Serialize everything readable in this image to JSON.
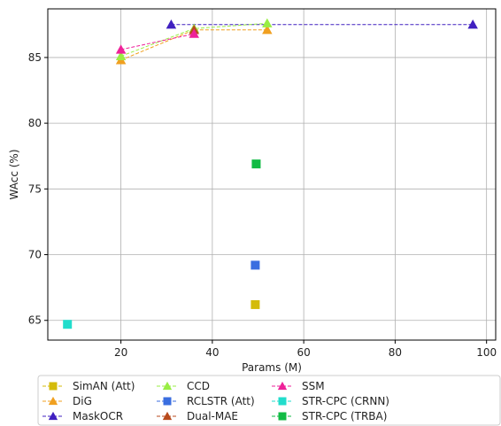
{
  "chart_data": {
    "type": "scatter",
    "xlabel": "Params (M)",
    "ylabel": "WAcc (%)",
    "xlim": [
      4,
      102
    ],
    "ylim": [
      63.5,
      88.7
    ],
    "xticks": [
      20,
      40,
      60,
      80,
      100
    ],
    "yticks": [
      65,
      70,
      75,
      80,
      85
    ],
    "grid": true,
    "legend_position": "bottom",
    "series": [
      {
        "name": "SimAN (Att)",
        "color": "#d4bb0a",
        "marker": "square",
        "line": false,
        "points": [
          [
            49.4,
            66.2
          ]
        ]
      },
      {
        "name": "DiG",
        "color": "#f0a020",
        "marker": "triangle",
        "line": true,
        "points": [
          [
            20,
            84.8
          ],
          [
            36,
            87.1
          ],
          [
            52,
            87.1
          ]
        ]
      },
      {
        "name": "MaskOCR",
        "color": "#4020c0",
        "marker": "triangle",
        "line": true,
        "points": [
          [
            31,
            87.5
          ],
          [
            97,
            87.5
          ]
        ]
      },
      {
        "name": "CCD",
        "color": "#99ee44",
        "marker": "triangle",
        "line": true,
        "points": [
          [
            20,
            85.1
          ],
          [
            36,
            87.2
          ],
          [
            52,
            87.6
          ]
        ]
      },
      {
        "name": "RCLSTR (Att)",
        "color": "#3a6ee0",
        "marker": "square",
        "line": false,
        "points": [
          [
            49.4,
            69.2
          ]
        ]
      },
      {
        "name": "Dual-MAE",
        "color": "#b84a1c",
        "marker": "triangle",
        "line": true,
        "points": [
          [
            36,
            87.1
          ]
        ]
      },
      {
        "name": "SSM",
        "color": "#ee2299",
        "marker": "triangle",
        "line": true,
        "points": [
          [
            20,
            85.6
          ],
          [
            36,
            86.8
          ]
        ]
      },
      {
        "name": "STR-CPC (CRNN)",
        "color": "#22ddcc",
        "marker": "square",
        "line": false,
        "points": [
          [
            8.3,
            64.7
          ]
        ]
      },
      {
        "name": "STR-CPC (TRBA)",
        "color": "#11bb44",
        "marker": "square",
        "line": false,
        "points": [
          [
            49.6,
            76.9
          ]
        ]
      }
    ]
  }
}
